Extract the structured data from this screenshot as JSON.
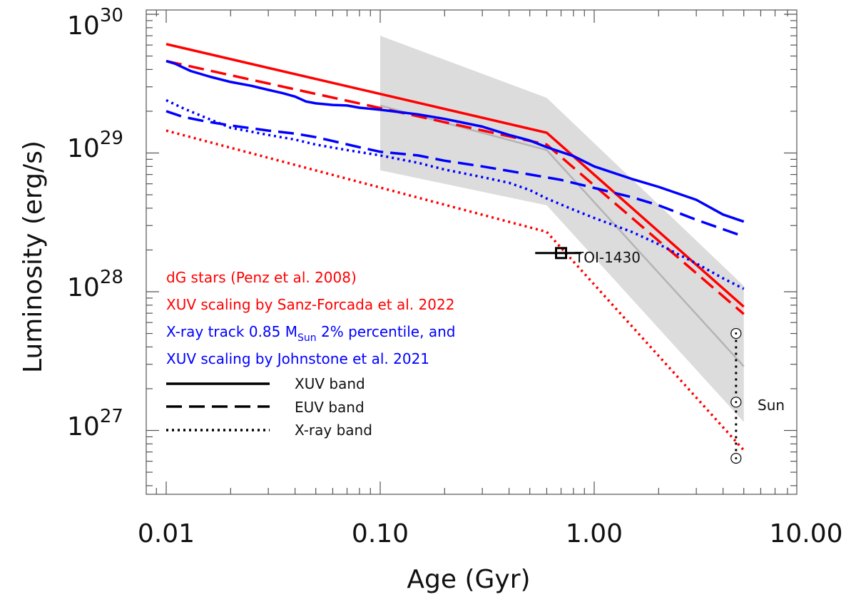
{
  "chart_data": {
    "type": "line",
    "xscale": "log",
    "yscale": "log",
    "xlim": [
      0.008,
      13
    ],
    "ylim": [
      3e+26,
      1e+30
    ],
    "xlabel": "Age (Gyr)",
    "ylabel": "Luminosity (erg/s)",
    "xticks": [
      {
        "value": 0.01,
        "label": "0.01"
      },
      {
        "value": 0.1,
        "label": "0.10"
      },
      {
        "value": 1,
        "label": "1.00"
      },
      {
        "value": 10,
        "label": "10.00"
      }
    ],
    "yticks": [
      {
        "value": 1e+27,
        "base": "10",
        "exp": "27"
      },
      {
        "value": 1e+28,
        "base": "10",
        "exp": "28"
      },
      {
        "value": 1e+29,
        "base": "10",
        "exp": "29"
      },
      {
        "value": 1e+30,
        "base": "10",
        "exp": "30"
      }
    ],
    "colors": {
      "red": "#ff0000",
      "blue": "#0000ff",
      "band": "#dcdcdc",
      "gray": "#b4b4b4",
      "black": "#000000"
    },
    "band": {
      "upper": [
        [
          0.1,
          7e+29
        ],
        [
          0.6,
          2.5e+29
        ],
        [
          5,
          1.1e+28
        ]
      ],
      "lower": [
        [
          0.1,
          7.5e+28
        ],
        [
          0.6,
          4.2e+28
        ],
        [
          5,
          1.15e+27
        ]
      ]
    },
    "series": [
      {
        "name": "Penz XUV (gray)",
        "color": "gray",
        "style": "solid",
        "width": 2.5,
        "points": [
          [
            0.1,
            2.2e+29
          ],
          [
            0.6,
            1.05e+29
          ],
          [
            5,
            2.9e+27
          ]
        ]
      },
      {
        "name": "Sanz-Forcada XUV band",
        "color": "red",
        "style": "solid",
        "width": 3.5,
        "points": [
          [
            0.01,
            6.1e+29
          ],
          [
            0.6,
            1.4e+29
          ],
          [
            5,
            7.8e+27
          ]
        ]
      },
      {
        "name": "Sanz-Forcada EUV band",
        "color": "red",
        "style": "dashed",
        "width": 3.5,
        "points": [
          [
            0.01,
            4.6e+29
          ],
          [
            0.6,
            1.15e+29
          ],
          [
            5,
            6.9e+27
          ]
        ]
      },
      {
        "name": "Sanz-Forcada X-ray band",
        "color": "red",
        "style": "dotted",
        "width": 3.5,
        "points": [
          [
            0.01,
            1.45e+29
          ],
          [
            0.6,
            2.7e+28
          ],
          [
            5,
            7.2e+26
          ]
        ]
      },
      {
        "name": "Johnstone XUV band",
        "color": "blue",
        "style": "solid",
        "width": 3.5,
        "points": [
          [
            0.01,
            4.6e+29
          ],
          [
            0.011,
            4.4e+29
          ],
          [
            0.013,
            3.9e+29
          ],
          [
            0.016,
            3.55e+29
          ],
          [
            0.02,
            3.25e+29
          ],
          [
            0.025,
            3.05e+29
          ],
          [
            0.03,
            2.85e+29
          ],
          [
            0.035,
            2.7e+29
          ],
          [
            0.04,
            2.55e+29
          ],
          [
            0.045,
            2.35e+29
          ],
          [
            0.05,
            2.28e+29
          ],
          [
            0.06,
            2.22e+29
          ],
          [
            0.07,
            2.2e+29
          ],
          [
            0.08,
            2.12e+29
          ],
          [
            0.1,
            2.05e+29
          ],
          [
            0.15,
            1.9e+29
          ],
          [
            0.2,
            1.76e+29
          ],
          [
            0.3,
            1.55e+29
          ],
          [
            0.4,
            1.35e+29
          ],
          [
            0.5,
            1.23e+29
          ],
          [
            0.6,
            1.1e+29
          ],
          [
            0.8,
            9.5e+28
          ],
          [
            1.0,
            8e+28
          ],
          [
            1.5,
            6.5e+28
          ],
          [
            2.0,
            5.7e+28
          ],
          [
            3.0,
            4.6e+28
          ],
          [
            4.0,
            3.6e+28
          ],
          [
            5.0,
            3.2e+28
          ]
        ]
      },
      {
        "name": "Johnstone EUV band",
        "color": "blue",
        "style": "dashed",
        "width": 3.5,
        "points": [
          [
            0.01,
            2e+29
          ],
          [
            0.012,
            1.82e+29
          ],
          [
            0.015,
            1.7e+29
          ],
          [
            0.02,
            1.58e+29
          ],
          [
            0.03,
            1.45e+29
          ],
          [
            0.04,
            1.38e+29
          ],
          [
            0.05,
            1.3e+29
          ],
          [
            0.06,
            1.22e+29
          ],
          [
            0.08,
            1.1e+29
          ],
          [
            0.1,
            1.02e+29
          ],
          [
            0.15,
            9.6e+28
          ],
          [
            0.2,
            8.8e+28
          ],
          [
            0.3,
            8e+28
          ],
          [
            0.5,
            7e+28
          ],
          [
            0.7,
            6.4e+28
          ],
          [
            1.0,
            5.6e+28
          ],
          [
            1.5,
            4.8e+28
          ],
          [
            2.0,
            4.2e+28
          ],
          [
            3.0,
            3.3e+28
          ],
          [
            5.0,
            2.5e+28
          ]
        ]
      },
      {
        "name": "Johnstone X-ray band",
        "color": "blue",
        "style": "dotted",
        "width": 3.5,
        "points": [
          [
            0.01,
            2.4e+29
          ],
          [
            0.012,
            2.1e+29
          ],
          [
            0.015,
            1.82e+29
          ],
          [
            0.02,
            1.52e+29
          ],
          [
            0.03,
            1.35e+29
          ],
          [
            0.04,
            1.25e+29
          ],
          [
            0.05,
            1.15e+29
          ],
          [
            0.07,
            1.05e+29
          ],
          [
            0.1,
            9.6e+28
          ],
          [
            0.15,
            8.5e+28
          ],
          [
            0.2,
            7.6e+28
          ],
          [
            0.3,
            6.7e+28
          ],
          [
            0.4,
            6.1e+28
          ],
          [
            0.5,
            5.4e+28
          ],
          [
            0.6,
            4.7e+28
          ],
          [
            0.8,
            3.9e+28
          ],
          [
            1.0,
            3.4e+28
          ],
          [
            1.5,
            2.7e+28
          ],
          [
            2.0,
            2.2e+28
          ],
          [
            3.0,
            1.6e+28
          ],
          [
            4.0,
            1.25e+28
          ],
          [
            5.0,
            1.05e+28
          ]
        ]
      }
    ],
    "toi": {
      "label": "TOI-1430",
      "x": 0.7,
      "y": 1.9e+28,
      "xerr": [
        0.53,
        0.87
      ]
    },
    "sun": {
      "label": "Sun",
      "x": 4.6,
      "values": [
        5e+27,
        1.6e+27,
        6.3e+26
      ]
    },
    "legend": {
      "position": "bottom-left",
      "text_lines": [
        {
          "text": "dG stars (Penz et al. 2008)",
          "color": "red"
        },
        {
          "text": "XUV scaling by Sanz-Forcada et al. 2022",
          "color": "red"
        },
        {
          "pre": "X-ray track 0.85 M",
          "sub": "Sun",
          "post": " 2% percentile, and",
          "color": "blue"
        },
        {
          "text": "XUV scaling by Johnstone et al. 2021",
          "color": "blue"
        }
      ],
      "line_entries": [
        {
          "label": "XUV band",
          "style": "solid"
        },
        {
          "label": "EUV band",
          "style": "dashed"
        },
        {
          "label": "X-ray band",
          "style": "dotted"
        }
      ]
    }
  }
}
